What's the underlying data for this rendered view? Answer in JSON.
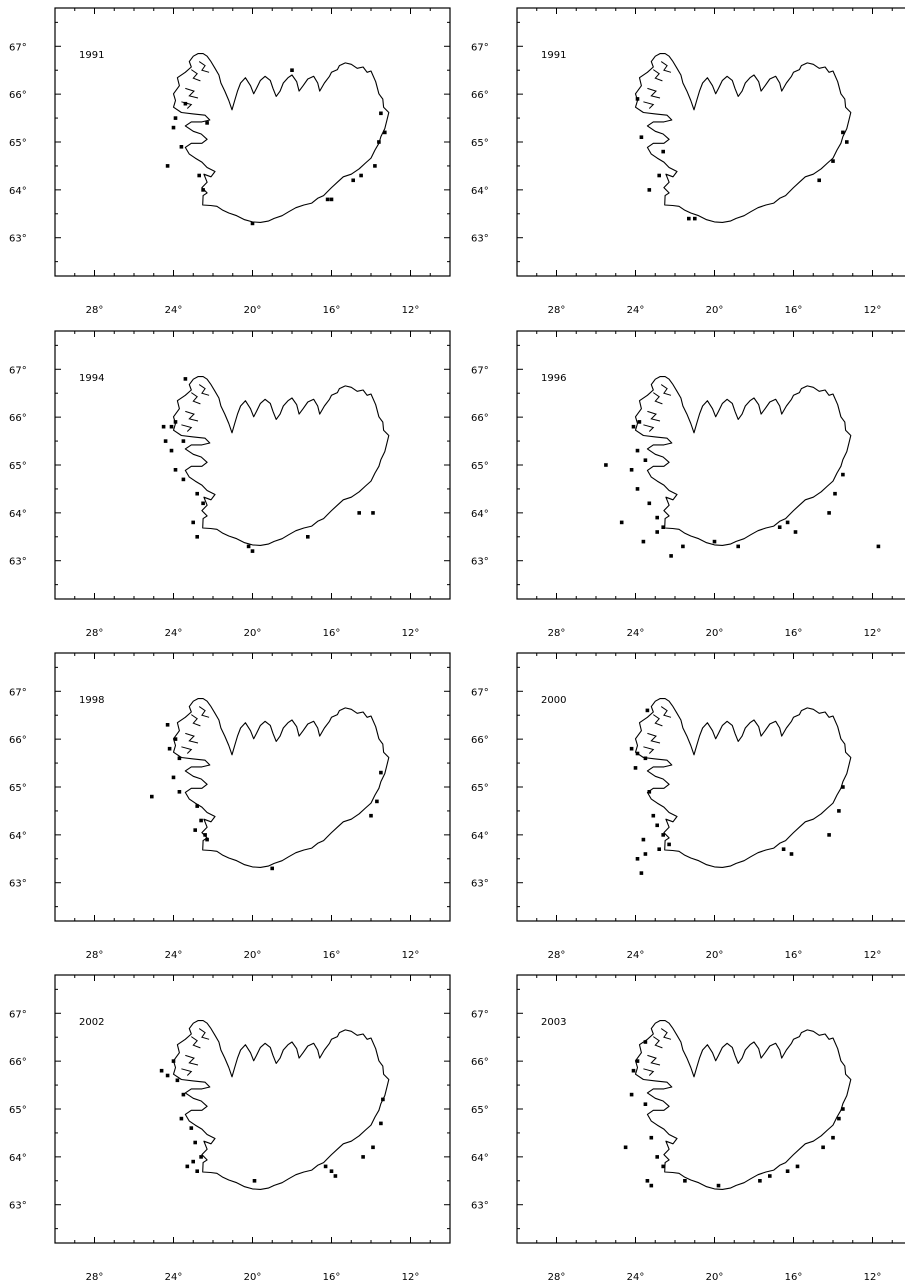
{
  "x_tick_labels": [
    "28°",
    "24°",
    "20°",
    "16°",
    "12°"
  ],
  "y_tick_labels": [
    "67°",
    "66°",
    "65°",
    "64°",
    "63°"
  ],
  "x_ticks_deg": [
    28,
    24,
    20,
    16,
    12
  ],
  "y_ticks_deg": [
    67,
    66,
    65,
    64,
    63
  ],
  "x_range_deg_w": [
    30,
    10
  ],
  "y_range_deg_n": [
    62.2,
    67.8
  ],
  "colors": {
    "ink": "#000000",
    "background": "#ffffff"
  },
  "panels": [
    {
      "year": "1991",
      "hotspots": [
        [
          24.3,
          64.5
        ],
        [
          23.9,
          65.5
        ],
        [
          24.0,
          65.3
        ],
        [
          23.6,
          64.9
        ],
        [
          23.4,
          65.8
        ],
        [
          22.7,
          64.3
        ],
        [
          22.5,
          64.0
        ],
        [
          22.3,
          65.4
        ],
        [
          20.0,
          63.3
        ],
        [
          18.0,
          66.5
        ],
        [
          16.2,
          63.8
        ],
        [
          16.0,
          63.8
        ],
        [
          14.9,
          64.2
        ],
        [
          14.5,
          64.3
        ],
        [
          13.8,
          64.5
        ],
        [
          13.6,
          65.0
        ],
        [
          13.3,
          65.2
        ],
        [
          13.5,
          65.6
        ]
      ]
    },
    {
      "year": "1991",
      "hotspots": [
        [
          23.9,
          65.9
        ],
        [
          23.7,
          65.1
        ],
        [
          22.8,
          64.3
        ],
        [
          21.3,
          63.4
        ],
        [
          21.0,
          63.4
        ],
        [
          23.3,
          64.0
        ],
        [
          13.5,
          65.2
        ],
        [
          13.3,
          65.0
        ],
        [
          14.0,
          64.6
        ],
        [
          14.7,
          64.2
        ],
        [
          22.6,
          64.8
        ]
      ]
    },
    {
      "year": "1994",
      "hotspots": [
        [
          24.5,
          65.8
        ],
        [
          24.1,
          65.8
        ],
        [
          23.9,
          65.9
        ],
        [
          24.4,
          65.5
        ],
        [
          24.1,
          65.3
        ],
        [
          23.5,
          65.5
        ],
        [
          23.5,
          64.7
        ],
        [
          22.8,
          64.4
        ],
        [
          22.5,
          64.2
        ],
        [
          23.0,
          63.8
        ],
        [
          22.8,
          63.5
        ],
        [
          20.2,
          63.3
        ],
        [
          20.0,
          63.2
        ],
        [
          17.2,
          63.5
        ],
        [
          14.6,
          64.0
        ],
        [
          13.9,
          64.0
        ],
        [
          23.4,
          66.8
        ],
        [
          23.9,
          64.9
        ]
      ]
    },
    {
      "year": "1996",
      "hotspots": [
        [
          24.1,
          65.8
        ],
        [
          23.8,
          65.9
        ],
        [
          23.9,
          65.3
        ],
        [
          23.5,
          65.1
        ],
        [
          23.9,
          64.5
        ],
        [
          23.3,
          64.2
        ],
        [
          22.9,
          63.9
        ],
        [
          22.6,
          63.7
        ],
        [
          22.9,
          63.6
        ],
        [
          23.6,
          63.4
        ],
        [
          22.2,
          63.1
        ],
        [
          21.6,
          63.3
        ],
        [
          20.0,
          63.4
        ],
        [
          18.8,
          63.3
        ],
        [
          16.7,
          63.7
        ],
        [
          16.3,
          63.8
        ],
        [
          15.9,
          63.6
        ],
        [
          14.2,
          64.0
        ],
        [
          13.5,
          64.8
        ],
        [
          13.9,
          64.4
        ],
        [
          11.7,
          63.3
        ],
        [
          25.5,
          65.0
        ],
        [
          24.7,
          63.8
        ],
        [
          24.2,
          64.9
        ]
      ]
    },
    {
      "year": "1998",
      "hotspots": [
        [
          24.2,
          65.8
        ],
        [
          23.9,
          66.0
        ],
        [
          23.7,
          65.6
        ],
        [
          22.8,
          64.6
        ],
        [
          22.6,
          64.3
        ],
        [
          22.4,
          64.0
        ],
        [
          22.9,
          64.1
        ],
        [
          22.3,
          63.9
        ],
        [
          25.1,
          64.8
        ],
        [
          24.0,
          65.2
        ],
        [
          23.7,
          64.9
        ],
        [
          19.0,
          63.3
        ],
        [
          14.0,
          64.4
        ],
        [
          13.7,
          64.7
        ],
        [
          13.5,
          65.3
        ],
        [
          24.3,
          66.3
        ]
      ]
    },
    {
      "year": "2000",
      "hotspots": [
        [
          24.2,
          65.8
        ],
        [
          23.9,
          65.7
        ],
        [
          23.5,
          65.6
        ],
        [
          24.0,
          65.4
        ],
        [
          23.3,
          64.9
        ],
        [
          23.1,
          64.4
        ],
        [
          22.6,
          64.0
        ],
        [
          22.9,
          64.2
        ],
        [
          23.6,
          63.9
        ],
        [
          22.8,
          63.7
        ],
        [
          23.5,
          63.6
        ],
        [
          23.9,
          63.5
        ],
        [
          23.7,
          63.2
        ],
        [
          16.5,
          63.7
        ],
        [
          16.1,
          63.6
        ],
        [
          14.2,
          64.0
        ],
        [
          13.7,
          64.5
        ],
        [
          13.5,
          65.0
        ],
        [
          23.4,
          66.6
        ],
        [
          22.3,
          63.8
        ]
      ]
    },
    {
      "year": "2002",
      "hotspots": [
        [
          24.6,
          65.8
        ],
        [
          24.3,
          65.7
        ],
        [
          24.0,
          66.0
        ],
        [
          23.8,
          65.6
        ],
        [
          23.5,
          65.3
        ],
        [
          23.6,
          64.8
        ],
        [
          23.1,
          64.6
        ],
        [
          22.9,
          64.3
        ],
        [
          22.6,
          64.0
        ],
        [
          23.0,
          63.9
        ],
        [
          23.3,
          63.8
        ],
        [
          22.8,
          63.7
        ],
        [
          19.9,
          63.5
        ],
        [
          16.3,
          63.8
        ],
        [
          16.0,
          63.7
        ],
        [
          15.8,
          63.6
        ],
        [
          13.9,
          64.2
        ],
        [
          13.5,
          64.7
        ],
        [
          13.4,
          65.2
        ],
        [
          14.4,
          64.0
        ]
      ]
    },
    {
      "year": "2003",
      "hotspots": [
        [
          24.1,
          65.8
        ],
        [
          23.9,
          66.0
        ],
        [
          23.5,
          66.4
        ],
        [
          24.2,
          65.3
        ],
        [
          23.5,
          65.1
        ],
        [
          23.2,
          64.4
        ],
        [
          22.9,
          64.0
        ],
        [
          22.6,
          63.8
        ],
        [
          23.4,
          63.5
        ],
        [
          23.2,
          63.4
        ],
        [
          21.5,
          63.5
        ],
        [
          19.8,
          63.4
        ],
        [
          17.7,
          63.5
        ],
        [
          16.3,
          63.7
        ],
        [
          15.8,
          63.8
        ],
        [
          14.5,
          64.2
        ],
        [
          14.0,
          64.4
        ],
        [
          13.7,
          64.8
        ],
        [
          13.5,
          65.0
        ],
        [
          17.2,
          63.6
        ],
        [
          24.5,
          64.2
        ]
      ]
    }
  ]
}
